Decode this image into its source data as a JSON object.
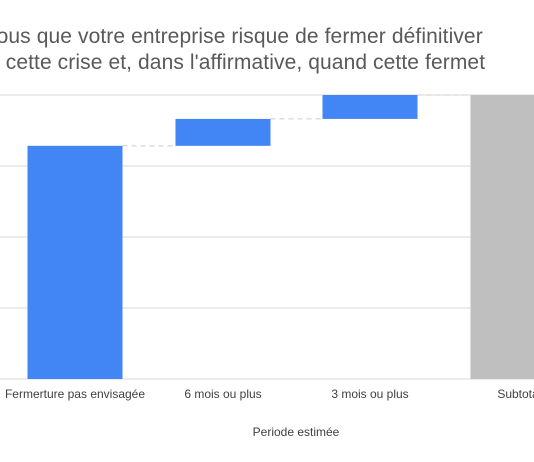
{
  "chart_data": {
    "type": "bar",
    "subtype": "waterfall",
    "title_lines": [
      "vous que votre entreprise risque de fermer définitiver",
      "e cette crise et, dans l'affirmative, quand cette fermet"
    ],
    "xlabel": "Periode estimée",
    "categories": [
      "Fermerture pas envisagée",
      "6 mois ou plus",
      "3 mois ou plus",
      "Subtota"
    ],
    "series": [
      {
        "values": [
          0.78,
          0.09,
          0.08,
          0.95
        ]
      }
    ],
    "bar_kinds": [
      "increase",
      "increase",
      "increase",
      "total"
    ],
    "colors": {
      "increase": "#4285f4",
      "total": "#bfbfbf",
      "grid": "#d9d9d9",
      "connector": "#cccccc"
    },
    "ylim": [
      0,
      0.95
    ],
    "grid": true
  }
}
